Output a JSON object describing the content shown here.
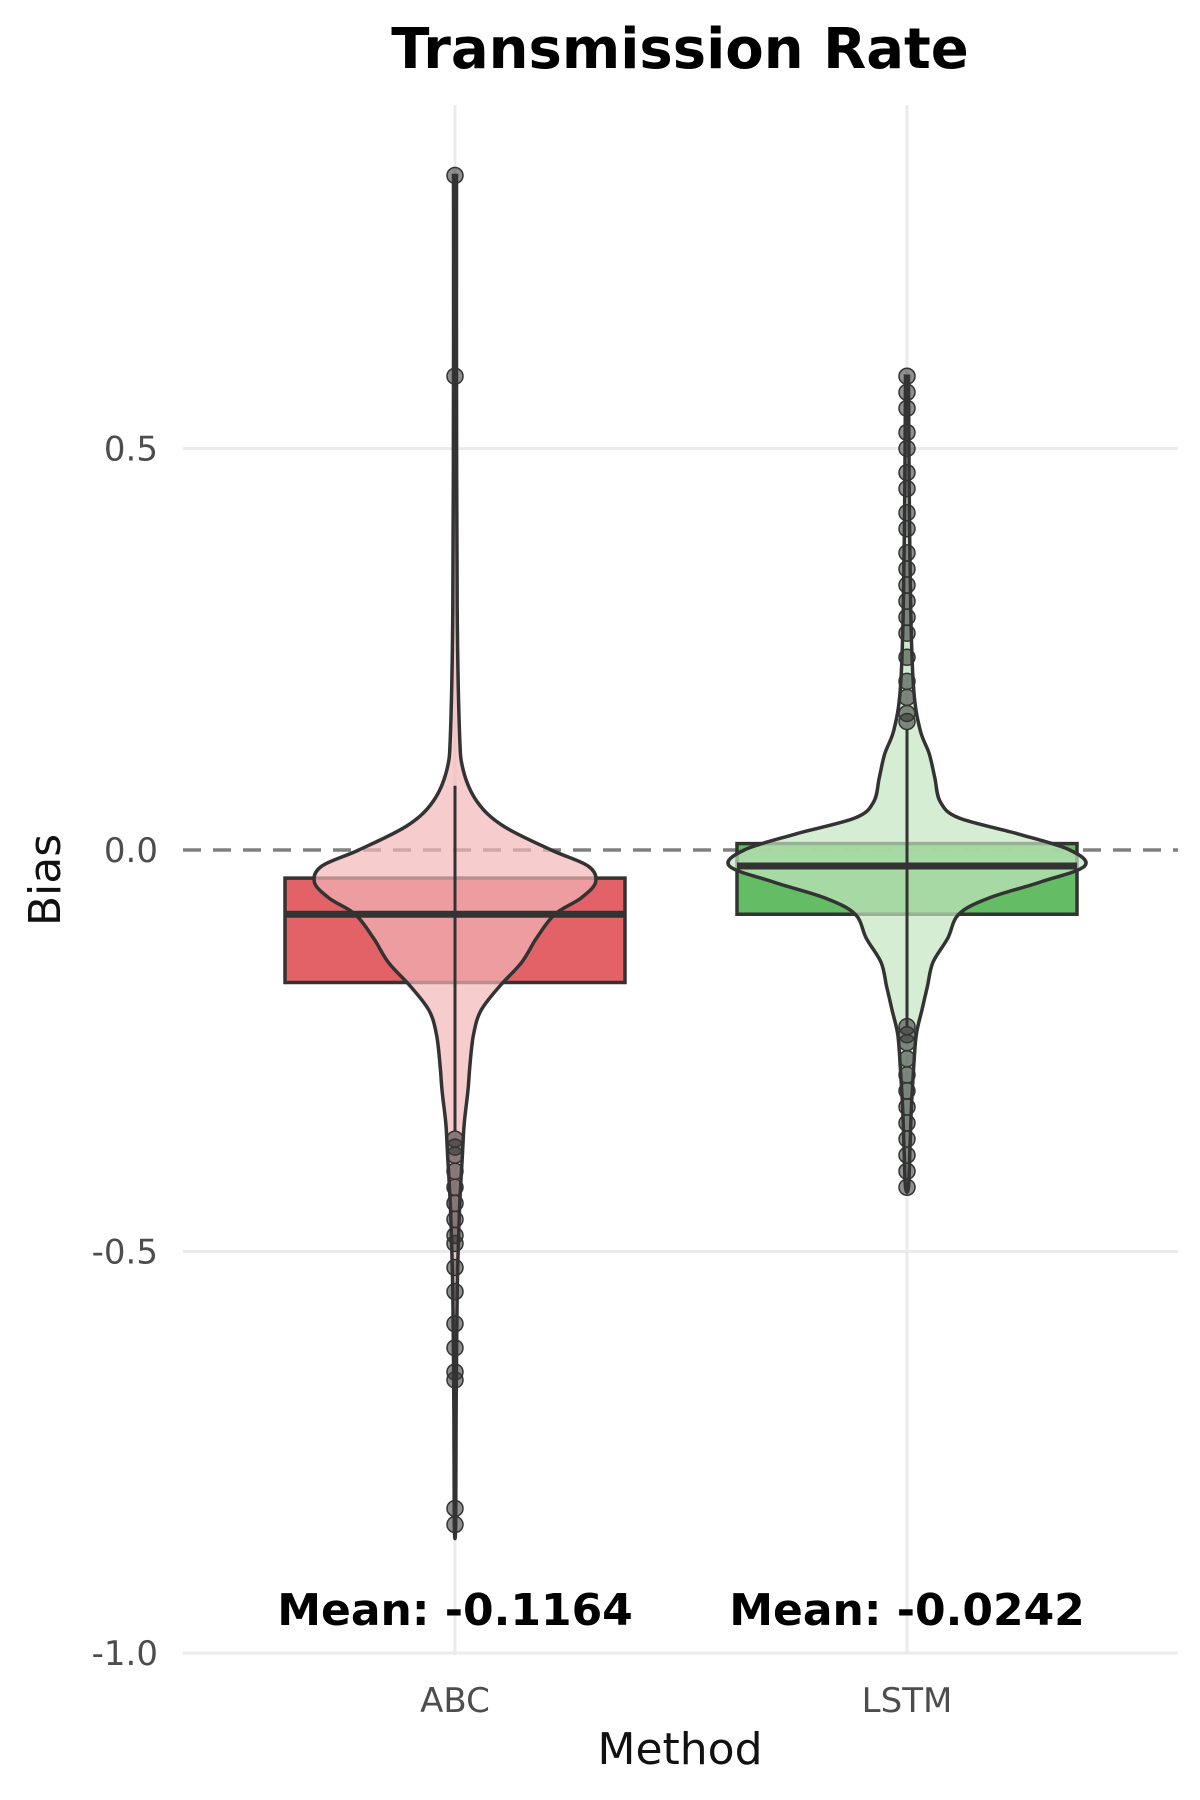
{
  "chart_data": {
    "type": "violin",
    "title": "Transmission Rate",
    "xlabel": "Method",
    "ylabel": "Bias",
    "categories": [
      "ABC",
      "LSTM"
    ],
    "ylim": [
      -1.0,
      0.9
    ],
    "yticks": [
      {
        "value": 0.5,
        "label": "0.5"
      },
      {
        "value": 0.0,
        "label": "0.0"
      },
      {
        "value": -0.5,
        "label": "-0.5"
      },
      {
        "value": -1.0,
        "label": "-1.0"
      }
    ],
    "reference_line": {
      "value": 0.0,
      "style": "dashed",
      "color": "#808080"
    },
    "grid": true,
    "series": [
      {
        "name": "ABC",
        "color": "#e05a5f",
        "violin_color": "#f2b7b8",
        "box": {
          "q1": -0.165,
          "median": -0.08,
          "q3": -0.035,
          "whisker_low": -0.35,
          "whisker_high": 0.08
        },
        "min": -0.84,
        "max": 0.84,
        "mean": -0.1164,
        "mean_label": "Mean: -0.1164",
        "density": [
          [
            0.84,
            0.004
          ],
          [
            0.6,
            0.004
          ],
          [
            0.3,
            0.006
          ],
          [
            0.15,
            0.012
          ],
          [
            0.1,
            0.022
          ],
          [
            0.06,
            0.06
          ],
          [
            0.03,
            0.13
          ],
          [
            0.0,
            0.26
          ],
          [
            -0.02,
            0.36
          ],
          [
            -0.04,
            0.38
          ],
          [
            -0.06,
            0.34
          ],
          [
            -0.08,
            0.27
          ],
          [
            -0.11,
            0.22
          ],
          [
            -0.14,
            0.18
          ],
          [
            -0.17,
            0.12
          ],
          [
            -0.2,
            0.07
          ],
          [
            -0.23,
            0.05
          ],
          [
            -0.27,
            0.04
          ],
          [
            -0.3,
            0.035
          ],
          [
            -0.34,
            0.025
          ],
          [
            -0.38,
            0.02
          ],
          [
            -0.45,
            0.012
          ],
          [
            -0.55,
            0.006
          ],
          [
            -0.7,
            0.003
          ],
          [
            -0.84,
            0.002
          ]
        ],
        "outliers": [
          0.84,
          0.59,
          -0.36,
          -0.37,
          -0.38,
          -0.4,
          -0.42,
          -0.44,
          -0.46,
          -0.48,
          -0.49,
          -0.52,
          -0.55,
          -0.59,
          -0.62,
          -0.65,
          -0.66,
          -0.82,
          -0.84
        ]
      },
      {
        "name": "LSTM",
        "color": "#5cb85c",
        "violin_color": "#c3e6bf",
        "box": {
          "q1": -0.08,
          "median": -0.02,
          "q3": 0.008,
          "whisker_low": -0.22,
          "whisker_high": 0.15
        },
        "min": -0.42,
        "max": 0.59,
        "mean": -0.0242,
        "mean_label": "Mean: -0.0242",
        "density": [
          [
            0.59,
            0.004
          ],
          [
            0.45,
            0.006
          ],
          [
            0.3,
            0.01
          ],
          [
            0.2,
            0.018
          ],
          [
            0.15,
            0.035
          ],
          [
            0.12,
            0.06
          ],
          [
            0.09,
            0.075
          ],
          [
            0.06,
            0.09
          ],
          [
            0.04,
            0.14
          ],
          [
            0.02,
            0.3
          ],
          [
            0.0,
            0.44
          ],
          [
            -0.02,
            0.48
          ],
          [
            -0.04,
            0.36
          ],
          [
            -0.06,
            0.22
          ],
          [
            -0.08,
            0.14
          ],
          [
            -0.11,
            0.11
          ],
          [
            -0.14,
            0.07
          ],
          [
            -0.17,
            0.055
          ],
          [
            -0.2,
            0.04
          ],
          [
            -0.23,
            0.025
          ],
          [
            -0.27,
            0.018
          ],
          [
            -0.32,
            0.012
          ],
          [
            -0.37,
            0.008
          ],
          [
            -0.42,
            0.004
          ]
        ],
        "outliers": [
          0.59,
          0.57,
          0.55,
          0.52,
          0.5,
          0.47,
          0.45,
          0.42,
          0.4,
          0.37,
          0.35,
          0.33,
          0.31,
          0.29,
          0.27,
          0.24,
          0.21,
          0.19,
          0.17,
          0.16,
          -0.22,
          -0.23,
          -0.24,
          -0.26,
          -0.28,
          -0.3,
          -0.32,
          -0.34,
          -0.36,
          -0.38,
          -0.4,
          -0.42
        ]
      }
    ]
  }
}
